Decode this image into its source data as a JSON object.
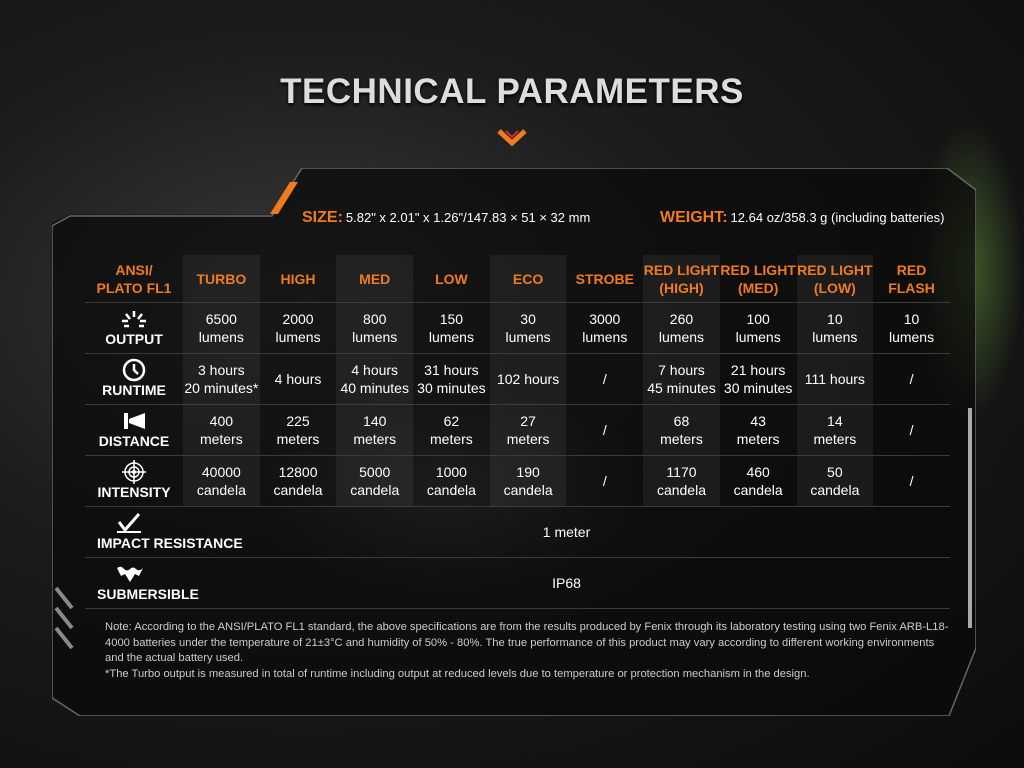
{
  "title": "TECHNICAL PARAMETERS",
  "accent": "#f07a1e",
  "size": {
    "label": "SIZE:",
    "value": "5.82\" x 2.01\" x 1.26\"/147.83 × 51 × 32 mm"
  },
  "weight": {
    "label": "WEIGHT:",
    "value": "12.64 oz/358.3 g (including batteries)"
  },
  "table": {
    "corner": [
      "ANSI/",
      "PLATO FL1"
    ],
    "columns": [
      [
        "TURBO"
      ],
      [
        "HIGH"
      ],
      [
        "MED"
      ],
      [
        "LOW"
      ],
      [
        "ECO"
      ],
      [
        "STROBE"
      ],
      [
        "RED LIGHT",
        "(HIGH)"
      ],
      [
        "RED LIGHT",
        "(MED)"
      ],
      [
        "RED LIGHT",
        "(LOW)"
      ],
      [
        "RED",
        "FLASH"
      ]
    ],
    "rows": [
      {
        "label": "OUTPUT",
        "icon": "sunburst-icon",
        "values": [
          [
            "6500",
            "lumens"
          ],
          [
            "2000",
            "lumens"
          ],
          [
            "800",
            "lumens"
          ],
          [
            "150",
            "lumens"
          ],
          [
            "30",
            "lumens"
          ],
          [
            "3000",
            "lumens"
          ],
          [
            "260",
            "lumens"
          ],
          [
            "100",
            "lumens"
          ],
          [
            "10",
            "lumens"
          ],
          [
            "10",
            "lumens"
          ]
        ]
      },
      {
        "label": "RUNTIME",
        "icon": "clock-icon",
        "values": [
          [
            "3 hours",
            "20 minutes*"
          ],
          [
            "4 hours"
          ],
          [
            "4 hours",
            "40 minutes"
          ],
          [
            "31 hours",
            "30 minutes"
          ],
          [
            "102 hours"
          ],
          [
            "/"
          ],
          [
            "7 hours",
            "45 minutes"
          ],
          [
            "21 hours",
            "30 minutes"
          ],
          [
            "111 hours"
          ],
          [
            "/"
          ]
        ]
      },
      {
        "label": "DISTANCE",
        "icon": "beam-distance-icon",
        "values": [
          [
            "400",
            "meters"
          ],
          [
            "225",
            "meters"
          ],
          [
            "140",
            "meters"
          ],
          [
            "62",
            "meters"
          ],
          [
            "27",
            "meters"
          ],
          [
            "/"
          ],
          [
            "68",
            "meters"
          ],
          [
            "43",
            "meters"
          ],
          [
            "14",
            "meters"
          ],
          [
            "/"
          ]
        ]
      },
      {
        "label": "INTENSITY",
        "icon": "target-icon",
        "values": [
          [
            "40000",
            "candela"
          ],
          [
            "12800",
            "candela"
          ],
          [
            "5000",
            "candela"
          ],
          [
            "1000",
            "candela"
          ],
          [
            "190",
            "candela"
          ],
          [
            "/"
          ],
          [
            "1170",
            "candela"
          ],
          [
            "460",
            "candela"
          ],
          [
            "50",
            "candela"
          ],
          [
            "/"
          ]
        ]
      }
    ],
    "wide_rows": [
      {
        "label": "IMPACT RESISTANCE",
        "icon": "impact-icon",
        "value": "1 meter"
      },
      {
        "label": "SUBMERSIBLE",
        "icon": "water-icon",
        "value": "IP68"
      }
    ]
  },
  "notes": [
    "Note: According to the ANSI/PLATO FL1 standard, the above specifications are from the results produced by Fenix through its laboratory testing using two Fenix ARB-L18-4000 batteries under the temperature of 21±3°C and humidity of 50% - 80%. The true performance of this product may vary according to different working environments and the actual battery used.",
    "*The Turbo output is measured in total of runtime including output at reduced levels due to temperature or protection mechanism in the design."
  ]
}
